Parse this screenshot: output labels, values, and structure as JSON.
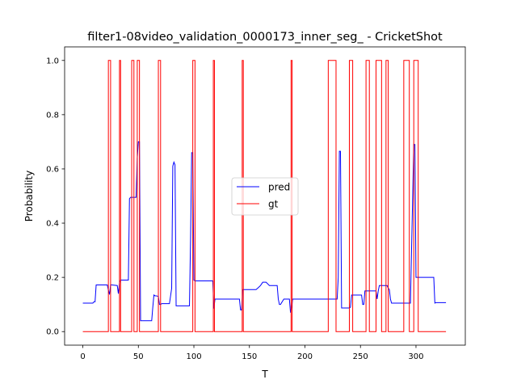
{
  "chart_data": {
    "type": "line",
    "title": "filter1-08video_validation_0000173_inner_seg_ - CricketShot",
    "xlabel": "T",
    "ylabel": "Probability",
    "xlim": [
      -16.4,
      344.4
    ],
    "ylim": [
      -0.05,
      1.05
    ],
    "xticks": [
      0,
      50,
      100,
      150,
      200,
      250,
      300
    ],
    "yticks": [
      0.0,
      0.2,
      0.4,
      0.6,
      0.8,
      1.0
    ],
    "xtick_labels": [
      "0",
      "50",
      "100",
      "150",
      "200",
      "250",
      "300"
    ],
    "ytick_labels": [
      "0.0",
      "0.2",
      "0.4",
      "0.6",
      "0.8",
      "1.0"
    ],
    "legend_position": "center",
    "grid": false,
    "series": [
      {
        "name": "pred",
        "color": "#0000ff",
        "x": [
          0,
          9,
          10,
          11,
          12,
          22,
          23,
          24,
          25,
          26,
          31,
          32,
          33,
          34,
          35,
          41,
          42,
          43,
          44,
          48,
          49,
          50,
          51,
          52,
          54,
          62,
          63,
          64,
          65,
          66,
          68,
          69,
          70,
          71,
          73,
          74,
          78,
          80,
          81,
          82,
          83,
          84,
          85,
          90,
          91,
          96,
          97,
          98,
          99,
          100,
          101,
          117,
          118,
          119,
          120,
          141,
          142,
          143,
          144,
          145,
          146,
          156,
          158,
          160,
          162,
          164,
          165,
          168,
          169,
          175,
          176,
          177,
          178,
          181,
          182,
          183,
          184,
          186,
          187,
          188,
          189,
          190,
          229,
          230,
          231,
          232,
          233,
          240,
          241,
          242,
          250,
          251,
          252,
          253,
          254,
          255,
          264,
          265,
          266,
          267,
          273,
          274,
          275,
          276,
          277,
          278,
          280,
          281,
          282,
          295,
          296,
          298,
          299,
          300,
          301,
          302,
          303,
          316,
          317,
          318,
          327
        ],
        "y": [
          0.105,
          0.105,
          0.11,
          0.11,
          0.172,
          0.172,
          0.153,
          0.137,
          0.172,
          0.172,
          0.17,
          0.14,
          0.18,
          0.19,
          0.19,
          0.19,
          0.49,
          0.495,
          0.495,
          0.495,
          0.64,
          0.7,
          0.7,
          0.04,
          0.04,
          0.04,
          0.09,
          0.135,
          0.132,
          0.132,
          0.13,
          0.1,
          0.1,
          0.103,
          0.103,
          0.103,
          0.103,
          0.16,
          0.61,
          0.625,
          0.615,
          0.095,
          0.095,
          0.095,
          0.095,
          0.095,
          0.34,
          0.66,
          0.66,
          0.19,
          0.187,
          0.187,
          0.085,
          0.12,
          0.12,
          0.12,
          0.08,
          0.08,
          0.155,
          0.155,
          0.155,
          0.155,
          0.162,
          0.17,
          0.182,
          0.182,
          0.182,
          0.17,
          0.17,
          0.17,
          0.12,
          0.1,
          0.1,
          0.12,
          0.12,
          0.12,
          0.12,
          0.12,
          0.07,
          0.09,
          0.12,
          0.12,
          0.12,
          0.2,
          0.665,
          0.665,
          0.087,
          0.087,
          0.09,
          0.135,
          0.135,
          0.135,
          0.1,
          0.1,
          0.15,
          0.15,
          0.15,
          0.12,
          0.15,
          0.17,
          0.17,
          0.17,
          0.16,
          0.155,
          0.12,
          0.105,
          0.105,
          0.105,
          0.105,
          0.105,
          0.3,
          0.69,
          0.69,
          0.2,
          0.2,
          0.2,
          0.2,
          0.2,
          0.105,
          0.107,
          0.107
        ]
      },
      {
        "name": "gt",
        "color": "#ff0000",
        "x": [
          0,
          23,
          23,
          25,
          25,
          33,
          33,
          34,
          34,
          44,
          44,
          46,
          46,
          49,
          49,
          51,
          51,
          68,
          68,
          70,
          70,
          99,
          99,
          101,
          101,
          117.5,
          117.5,
          118.5,
          118.5,
          143.5,
          143.5,
          144.5,
          144.5,
          187.5,
          187.5,
          188.5,
          188.5,
          221,
          221,
          228,
          228,
          240,
          240,
          243,
          243,
          255,
          255,
          258,
          258,
          264,
          264,
          269,
          269,
          273,
          273,
          275,
          275,
          289,
          289,
          294,
          294,
          298,
          298,
          302,
          302,
          327
        ],
        "y": [
          0,
          0,
          1,
          1,
          0,
          0,
          1,
          1,
          0,
          0,
          1,
          1,
          0,
          0,
          1,
          1,
          0,
          0,
          1,
          1,
          0,
          0,
          1,
          1,
          0,
          0,
          1,
          1,
          0,
          0,
          1,
          1,
          0,
          0,
          1,
          1,
          0,
          0,
          1,
          1,
          0,
          0,
          1,
          1,
          0,
          0,
          1,
          1,
          0,
          0,
          1,
          1,
          0,
          0,
          1,
          1,
          0,
          0,
          1,
          1,
          0,
          0,
          1,
          1,
          0,
          0
        ]
      }
    ]
  }
}
